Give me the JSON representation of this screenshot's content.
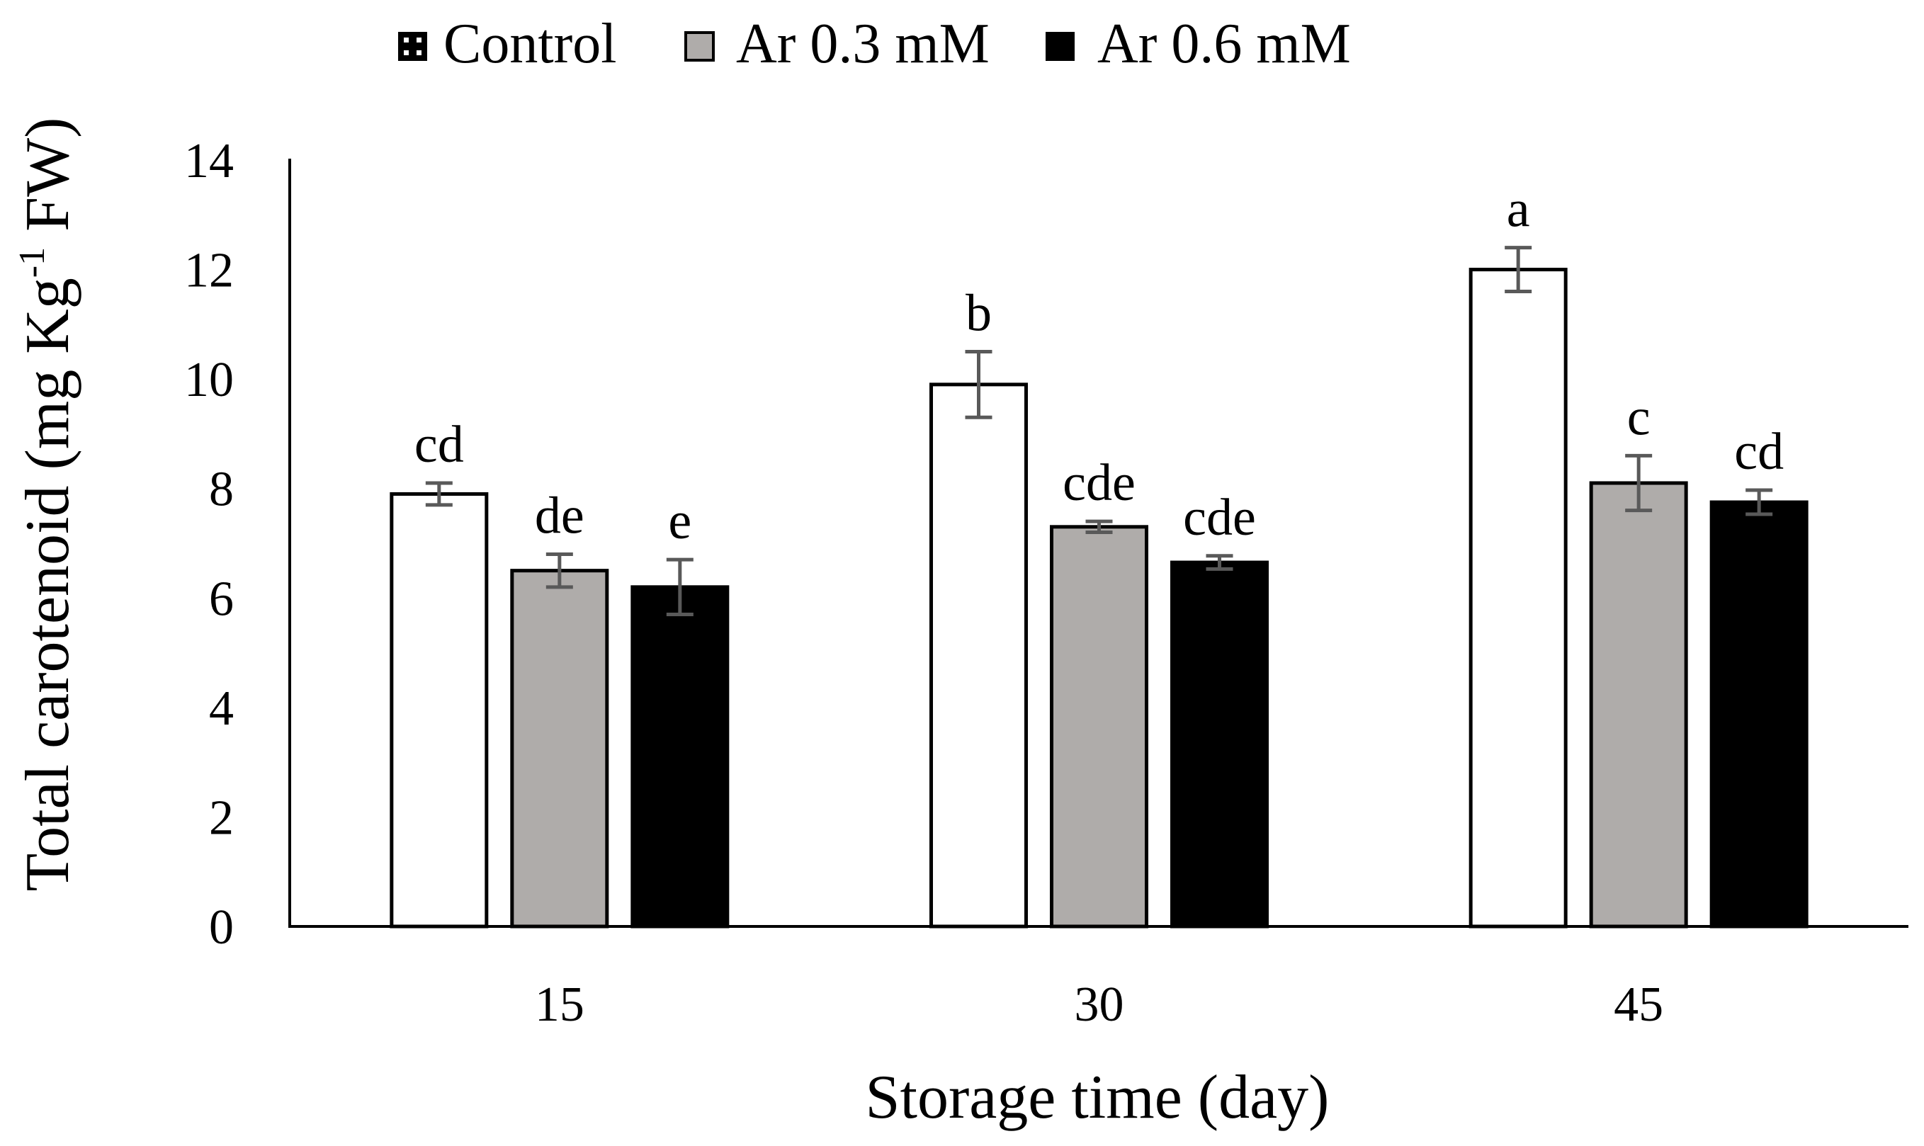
{
  "chart_data": {
    "type": "bar",
    "categories": [
      "15",
      "30",
      "45"
    ],
    "series": [
      {
        "name": "Control",
        "values": [
          7.9,
          9.9,
          12.0
        ],
        "errors": [
          0.2,
          0.6,
          0.4
        ],
        "letters": [
          "cd",
          "b",
          "a"
        ],
        "color": "#FFFFFF"
      },
      {
        "name": "Ar 0.3 mM",
        "values": [
          6.5,
          7.3,
          8.1
        ],
        "errors": [
          0.3,
          0.1,
          0.5
        ],
        "letters": [
          "de",
          "cde",
          "c"
        ],
        "color": "#AFACAA"
      },
      {
        "name": "Ar 0.6 mM",
        "values": [
          6.2,
          6.65,
          7.75
        ],
        "errors": [
          0.5,
          0.12,
          0.22
        ],
        "letters": [
          "e",
          "cde",
          "cd"
        ],
        "color": "#000000"
      }
    ],
    "xlabel": "Storage time (day)",
    "ylabel": {
      "text": "Total carotenoid (mg Kg",
      "sup": "-1",
      "after": " FW)"
    },
    "ylim": [
      0,
      14
    ],
    "yticks": [
      0,
      2,
      4,
      6,
      8,
      10,
      12,
      14
    ],
    "grid": false,
    "error_bar_color": "#595959",
    "axis_color": "#000000"
  }
}
